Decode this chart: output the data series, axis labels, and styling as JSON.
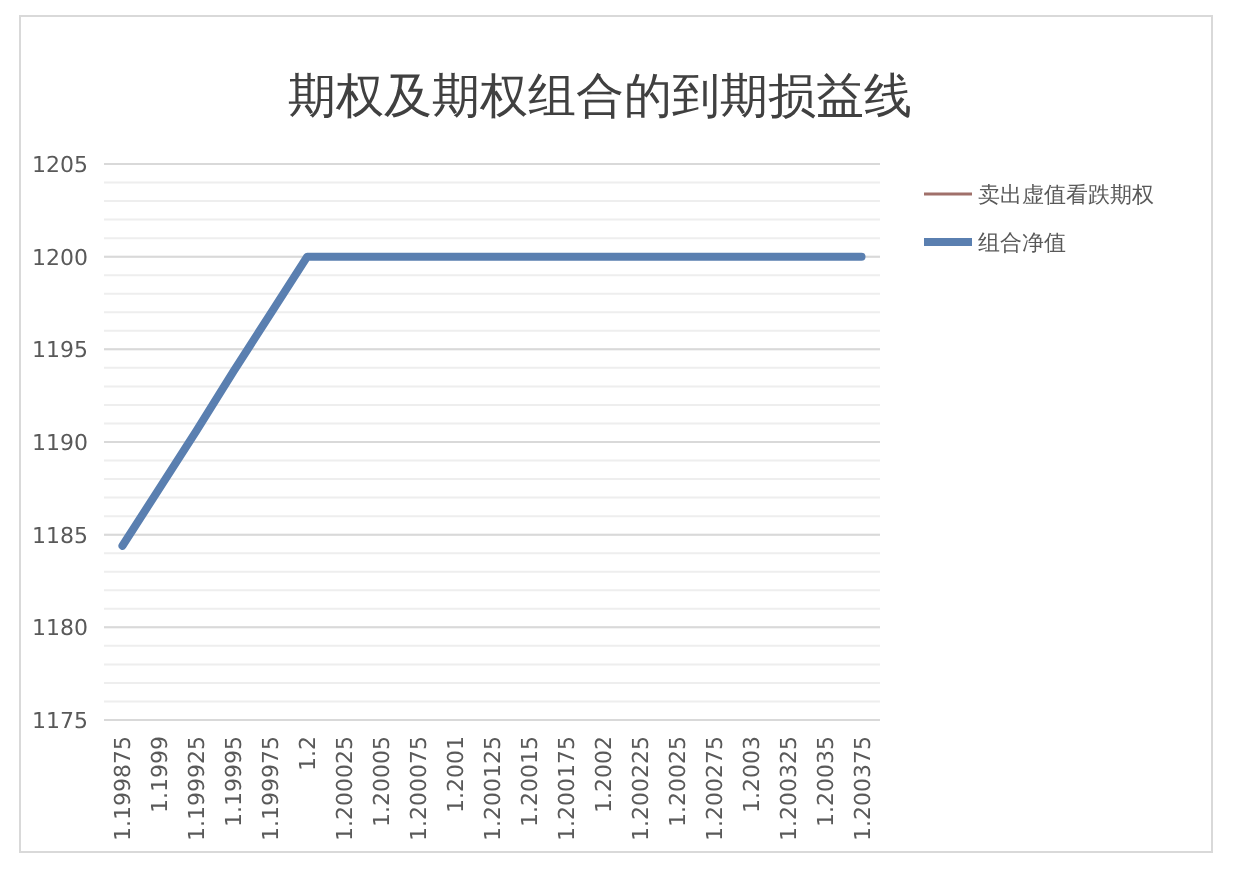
{
  "chart_data": {
    "type": "line",
    "title": "期权及期权组合的到期损益线",
    "categories": [
      "1.199875",
      "1.1999",
      "1.199925",
      "1.19995",
      "1.199975",
      "1.2",
      "1.200025",
      "1.20005",
      "1.200075",
      "1.2001",
      "1.200125",
      "1.20015",
      "1.200175",
      "1.2002",
      "1.200225",
      "1.20025",
      "1.200275",
      "1.2003",
      "1.200325",
      "1.20035",
      "1.200375"
    ],
    "series": [
      {
        "name": "卖出虚值看跌期权",
        "color": "#a0706a",
        "values": [
          null,
          null,
          null,
          null,
          null,
          null,
          null,
          null,
          null,
          null,
          null,
          null,
          null,
          null,
          null,
          null,
          null,
          null,
          null,
          null,
          null
        ]
      },
      {
        "name": "组合净值",
        "color": "#5a7fb0",
        "values": [
          1184.4,
          1187.5,
          1190.6,
          1193.8,
          1196.9,
          1200,
          1200,
          1200,
          1200,
          1200,
          1200,
          1200,
          1200,
          1200,
          1200,
          1200,
          1200,
          1200,
          1200,
          1200,
          1200
        ]
      }
    ],
    "ylim": [
      1175,
      1205
    ],
    "yticks": [
      1175,
      1180,
      1185,
      1190,
      1195,
      1200,
      1205
    ],
    "grid": "y",
    "legend": "right",
    "marker": "none",
    "line_style": "solid"
  }
}
